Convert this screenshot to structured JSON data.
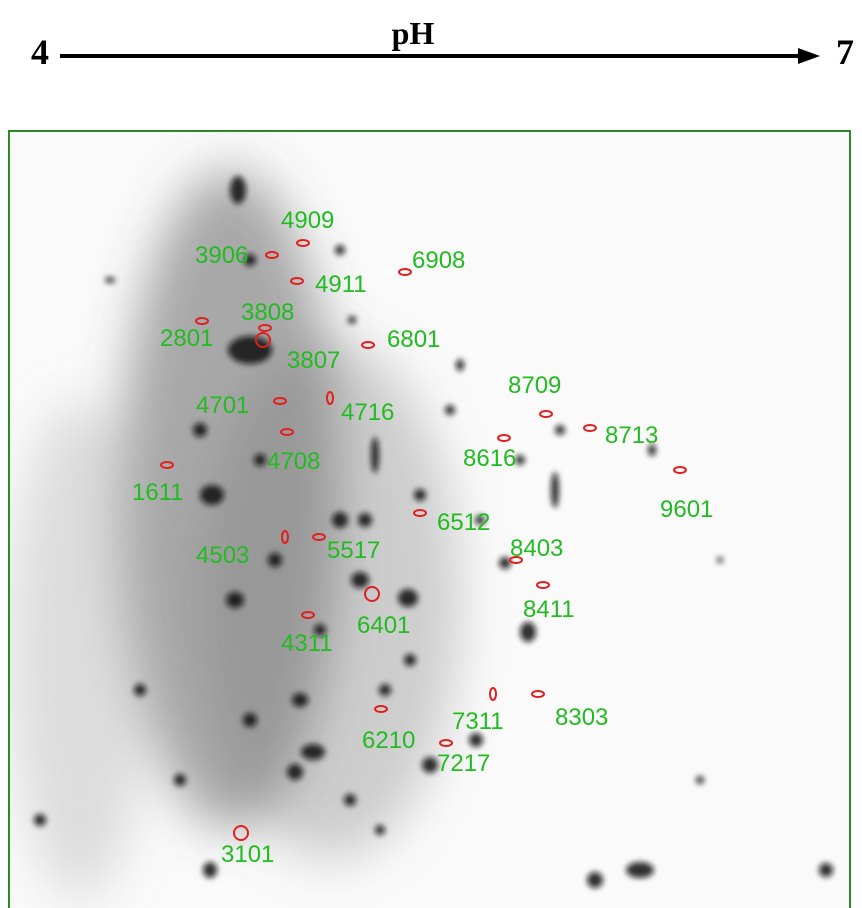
{
  "header": {
    "title": "pH",
    "start": "4",
    "end": "7"
  },
  "spots": [
    {
      "label": "4909"
    },
    {
      "label": "3906"
    },
    {
      "label": "6908"
    },
    {
      "label": "4911"
    },
    {
      "label": "3808"
    },
    {
      "label": "2801"
    },
    {
      "label": "6801"
    },
    {
      "label": "3807"
    },
    {
      "label": "8709"
    },
    {
      "label": "4701"
    },
    {
      "label": "4716"
    },
    {
      "label": "8713"
    },
    {
      "label": "8616"
    },
    {
      "label": "4708"
    },
    {
      "label": "1611"
    },
    {
      "label": "9601"
    },
    {
      "label": "6512"
    },
    {
      "label": "8403"
    },
    {
      "label": "4503"
    },
    {
      "label": "5517"
    },
    {
      "label": "8411"
    },
    {
      "label": "6401"
    },
    {
      "label": "4311"
    },
    {
      "label": "8303"
    },
    {
      "label": "7311"
    },
    {
      "label": "6210"
    },
    {
      "label": "7217"
    },
    {
      "label": "3101"
    }
  ]
}
